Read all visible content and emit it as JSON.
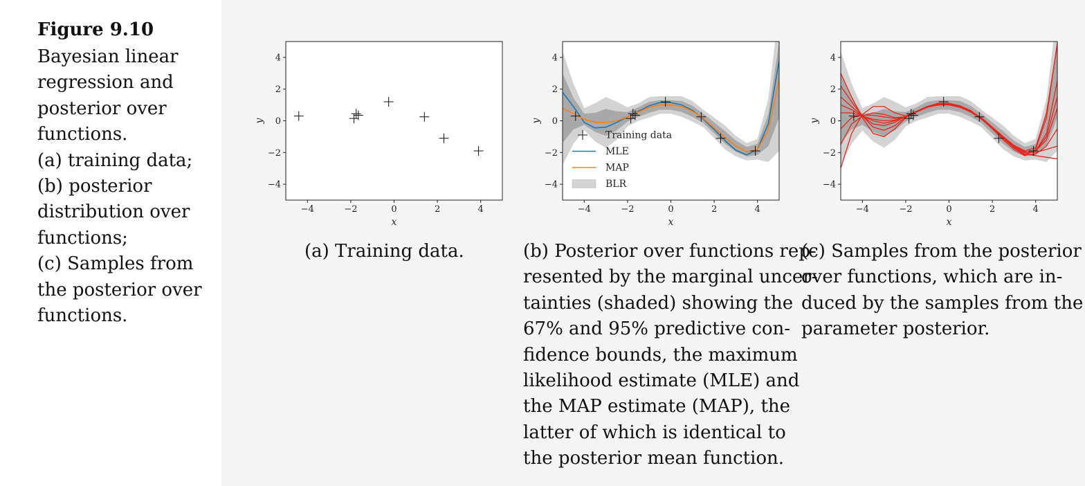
{
  "figure": {
    "title": "Figure 9.10",
    "caption_lines": [
      "Bayesian linear",
      "regression and",
      "posterior over",
      "functions.",
      "(a) training data;",
      "(b) posterior",
      "distribution over",
      "functions;",
      "(c) Samples from",
      "the posterior over",
      "functions."
    ]
  },
  "subcaptions": {
    "a": [
      "(a) Training data."
    ],
    "b": [
      "(b) Posterior over functions rep-",
      "resented by the marginal uncer-",
      "tainties (shaded) showing the",
      "67% and 95% predictive con-",
      "fidence bounds, the maximum",
      "likelihood estimate (MLE) and",
      "the MAP estimate (MAP), the",
      "latter of which is identical to",
      "the posterior mean function."
    ],
    "c": [
      "(c) Samples from the posterior",
      "over functions, which are in-",
      "duced by the samples from the",
      "parameter posterior."
    ]
  },
  "chart_data": [
    {
      "type": "scatter",
      "xlabel": "x",
      "ylabel": "y",
      "xlim": [
        -5,
        5
      ],
      "ylim": [
        -5,
        5
      ],
      "xticks": [
        -4,
        -2,
        0,
        2,
        4
      ],
      "yticks": [
        -4,
        -2,
        0,
        2,
        4
      ],
      "tick_labels_x": [
        "−4",
        "−2",
        "0",
        "2",
        "4"
      ],
      "tick_labels_y": [
        "−4",
        "−2",
        "0",
        "2",
        "4"
      ],
      "points": [
        [
          -4.4,
          0.3
        ],
        [
          -1.85,
          0.15
        ],
        [
          -1.75,
          0.45
        ],
        [
          -1.65,
          0.35
        ],
        [
          -0.25,
          1.2
        ],
        [
          1.4,
          0.25
        ],
        [
          2.3,
          -1.1
        ],
        [
          3.9,
          -1.9
        ]
      ]
    },
    {
      "type": "line",
      "xlabel": "x",
      "ylabel": "y",
      "xlim": [
        -5,
        5
      ],
      "ylim": [
        -5,
        5
      ],
      "xticks": [
        -4,
        -2,
        0,
        2,
        4
      ],
      "yticks": [
        -4,
        -2,
        0,
        2,
        4
      ],
      "tick_labels_x": [
        "−4",
        "−2",
        "0",
        "2",
        "4"
      ],
      "tick_labels_y": [
        "−4",
        "−2",
        "0",
        "2",
        "4"
      ],
      "legend_position": "lower-left",
      "legend": [
        "Training data",
        "MLE",
        "MAP",
        "BLR"
      ],
      "colors": {
        "MLE": "#1f77b4",
        "MAP": "#ff7f0e",
        "band95": "#d3d3d3",
        "band67": "#a9a9a9"
      },
      "points": [
        [
          -4.4,
          0.3
        ],
        [
          -1.85,
          0.15
        ],
        [
          -1.75,
          0.45
        ],
        [
          -1.65,
          0.35
        ],
        [
          -0.25,
          1.2
        ],
        [
          1.4,
          0.25
        ],
        [
          2.3,
          -1.1
        ],
        [
          3.9,
          -1.9
        ]
      ],
      "x": [
        -5,
        -4.5,
        -4,
        -3.5,
        -3,
        -2.5,
        -2,
        -1.5,
        -1,
        -0.5,
        0,
        0.5,
        1,
        1.5,
        2,
        2.5,
        3,
        3.5,
        4,
        4.5,
        5
      ],
      "series": [
        {
          "name": "MLE",
          "values": [
            1.8,
            0.9,
            -0.1,
            -0.45,
            -0.4,
            -0.1,
            0.25,
            0.6,
            0.95,
            1.15,
            1.15,
            1.0,
            0.65,
            0.1,
            -0.55,
            -1.25,
            -1.85,
            -2.15,
            -1.8,
            -0.2,
            3.8
          ]
        },
        {
          "name": "MAP",
          "values": [
            0.8,
            0.45,
            0.1,
            -0.1,
            -0.1,
            0.0,
            0.25,
            0.55,
            0.85,
            1.0,
            1.0,
            0.9,
            0.6,
            0.15,
            -0.45,
            -1.05,
            -1.6,
            -1.95,
            -1.8,
            -0.6,
            2.6
          ]
        }
      ],
      "band67_halfwidth": [
        2.2,
        1.0,
        0.35,
        0.6,
        0.85,
        0.6,
        0.3,
        0.3,
        0.35,
        0.3,
        0.3,
        0.35,
        0.35,
        0.3,
        0.35,
        0.4,
        0.35,
        0.3,
        0.35,
        1.0,
        2.4
      ],
      "band95_halfwidth": [
        3.6,
        1.9,
        0.7,
        1.2,
        1.6,
        1.2,
        0.6,
        0.55,
        0.65,
        0.55,
        0.55,
        0.65,
        0.65,
        0.55,
        0.65,
        0.75,
        0.65,
        0.55,
        0.65,
        2.0,
        4.5
      ]
    },
    {
      "type": "line",
      "xlabel": "x",
      "ylabel": "y",
      "xlim": [
        -5,
        5
      ],
      "ylim": [
        -5,
        5
      ],
      "xticks": [
        -4,
        -2,
        0,
        2,
        4
      ],
      "yticks": [
        -4,
        -2,
        0,
        2,
        4
      ],
      "tick_labels_x": [
        "−4",
        "−2",
        "0",
        "2",
        "4"
      ],
      "tick_labels_y": [
        "−4",
        "−2",
        "0",
        "2",
        "4"
      ],
      "sample_color": "#e8261c",
      "points": [
        [
          -4.4,
          0.3
        ],
        [
          -1.85,
          0.15
        ],
        [
          -1.75,
          0.45
        ],
        [
          -1.65,
          0.35
        ],
        [
          -0.25,
          1.2
        ],
        [
          1.4,
          0.25
        ],
        [
          2.3,
          -1.1
        ],
        [
          3.9,
          -1.9
        ]
      ],
      "x": [
        -5,
        -4.5,
        -4,
        -3.5,
        -3,
        -2.5,
        -2,
        -1.5,
        -1,
        -0.5,
        0,
        0.5,
        1,
        1.5,
        2,
        2.5,
        3,
        3.5,
        4,
        4.5,
        5
      ],
      "samples": [
        [
          3.0,
          1.5,
          0.2,
          -0.8,
          -1.0,
          -0.5,
          0.2,
          0.6,
          0.9,
          1.1,
          1.1,
          0.9,
          0.6,
          0.1,
          -0.5,
          -1.1,
          -1.7,
          -2.1,
          -1.9,
          -0.8,
          2.5
        ],
        [
          -3.0,
          -0.8,
          0.4,
          0.9,
          0.9,
          0.5,
          0.3,
          0.6,
          0.9,
          1.1,
          1.1,
          0.9,
          0.55,
          0.15,
          -0.5,
          -1.1,
          -1.6,
          -2.0,
          -1.9,
          -1.2,
          0.8
        ],
        [
          1.5,
          0.9,
          0.3,
          -0.2,
          -0.3,
          -0.1,
          0.3,
          0.6,
          0.85,
          1.0,
          1.0,
          0.85,
          0.55,
          0.1,
          -0.45,
          -1.1,
          -1.65,
          -2.1,
          -2.2,
          -2.3,
          -2.4
        ],
        [
          -1.5,
          -0.2,
          0.3,
          0.5,
          0.4,
          0.2,
          0.25,
          0.6,
          0.9,
          1.05,
          1.05,
          0.9,
          0.6,
          0.2,
          -0.4,
          -1.0,
          -1.55,
          -1.9,
          -1.7,
          0.5,
          4.8
        ],
        [
          0.5,
          0.5,
          0.3,
          0.1,
          0.0,
          0.05,
          0.25,
          0.55,
          0.9,
          1.05,
          1.05,
          0.9,
          0.6,
          0.15,
          -0.45,
          -1.05,
          -1.6,
          -2.0,
          -1.9,
          -1.0,
          1.5
        ],
        [
          2.2,
          1.2,
          0.3,
          -0.4,
          -0.6,
          -0.3,
          0.25,
          0.6,
          0.9,
          1.1,
          1.1,
          0.95,
          0.65,
          0.15,
          -0.5,
          -1.2,
          -1.8,
          -2.2,
          -1.8,
          0.2,
          4.9
        ],
        [
          -0.5,
          0.2,
          0.35,
          0.35,
          0.25,
          0.15,
          0.25,
          0.55,
          0.85,
          1.0,
          1.0,
          0.85,
          0.6,
          0.15,
          -0.4,
          -1.0,
          -1.6,
          -1.95,
          -2.0,
          -1.8,
          -1.6
        ],
        [
          1.0,
          0.7,
          0.3,
          0.0,
          -0.15,
          0.0,
          0.3,
          0.6,
          0.9,
          1.05,
          1.05,
          0.9,
          0.6,
          0.15,
          -0.45,
          -1.1,
          -1.7,
          -2.15,
          -2.1,
          -1.6,
          -0.5
        ]
      ],
      "band67_halfwidth": [
        2.2,
        1.0,
        0.35,
        0.6,
        0.85,
        0.6,
        0.3,
        0.3,
        0.35,
        0.3,
        0.3,
        0.35,
        0.35,
        0.3,
        0.35,
        0.4,
        0.35,
        0.3,
        0.35,
        1.0,
        2.4
      ],
      "band95_halfwidth": [
        3.6,
        1.9,
        0.7,
        1.2,
        1.6,
        1.2,
        0.6,
        0.55,
        0.65,
        0.55,
        0.55,
        0.65,
        0.65,
        0.55,
        0.65,
        0.75,
        0.65,
        0.55,
        0.65,
        2.0,
        4.5
      ],
      "mean": [
        0.8,
        0.45,
        0.1,
        -0.1,
        -0.1,
        0.0,
        0.25,
        0.55,
        0.85,
        1.0,
        1.0,
        0.9,
        0.6,
        0.15,
        -0.45,
        -1.05,
        -1.6,
        -1.95,
        -1.8,
        -0.6,
        2.6
      ]
    }
  ]
}
